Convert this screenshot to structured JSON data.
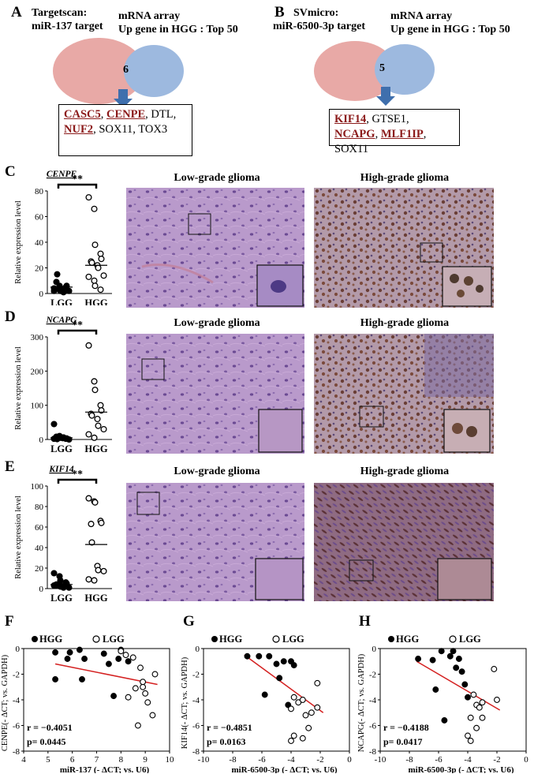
{
  "panelA": {
    "label": "A",
    "left_title_line1": "Targetscan:",
    "left_title_line2": "miR-137 target",
    "right_title_line1": "mRNA array",
    "right_title_line2": "Up gene in HGG : Top 50",
    "overlap": "6",
    "genes": [
      {
        "text": "CASC5",
        "highlight": true
      },
      {
        "text": "CENPE",
        "highlight": true
      },
      {
        "text": "DTL",
        "highlight": false
      },
      {
        "text": "NUF2",
        "highlight": true
      },
      {
        "text": "SOX11",
        "highlight": false
      },
      {
        "text": "TOX3",
        "highlight": false
      }
    ]
  },
  "panelB": {
    "label": "B",
    "left_title_line1": "SVmicro:",
    "left_title_line2": "miR-6500-3p  target",
    "right_title_line1": "mRNA array",
    "right_title_line2": "Up gene in HGG : Top 50",
    "overlap": "5",
    "genes": [
      {
        "text": "KIF14",
        "highlight": true
      },
      {
        "text": "GTSE1",
        "highlight": false
      },
      {
        "text": "NCAPG",
        "highlight": true
      },
      {
        "text": "MLF1IP",
        "highlight": true
      },
      {
        "text": "SOX11",
        "highlight": false
      }
    ]
  },
  "micrographs": {
    "low": "Low-grade glioma",
    "high": "High-grade glioma"
  },
  "colors": {
    "venn_left": "#e8a9a6",
    "venn_right": "#9db9df",
    "venn_overlap": "#b8a5c4",
    "arrow": "#3f6fad",
    "gene_red": "#8b1a1a",
    "regression_line": "#d42020",
    "lgg_tissue": "#b893c9",
    "hgg_tissue": "#a57a8f"
  },
  "panelC": {
    "label": "C",
    "gene": "CENPE",
    "sig": "**",
    "ylabel": "Relative expression level",
    "categories": [
      "LGG",
      "HGG"
    ]
  },
  "panelD": {
    "label": "D",
    "gene": "NCAPG",
    "sig": "**",
    "ylabel": "Relative expression level",
    "categories": [
      "LGG",
      "HGG"
    ]
  },
  "panelE": {
    "label": "E",
    "gene": "KIF14",
    "sig": "**",
    "ylabel": "Relative expression level",
    "categories": [
      "LGG",
      "HGG"
    ]
  },
  "panelF": {
    "label": "F",
    "legend_hgg": "HGG",
    "legend_lgg": "LGG",
    "r_text": "r = −0.4051",
    "p_text": "p= 0.0445",
    "xlabel": "miR-137 (- ΔCT; vs. U6)",
    "ylabel": "CENPE(- ΔCT; vs. GAPDH)"
  },
  "panelG": {
    "label": "G",
    "legend_hgg": "HGG",
    "legend_lgg": "LGG",
    "r_text": "r = −0.4851",
    "p_text": "p= 0.0163",
    "xlabel": "miR-6500-3p (- ΔCT; vs. U6)",
    "ylabel": "KIF14(- ΔCT; vs. GAPDH)"
  },
  "panelH": {
    "label": "H",
    "legend_hgg": "HGG",
    "legend_lgg": "LGG",
    "r_text": "r = −0.4188",
    "p_text": "p= 0.0417",
    "xlabel": "miR-6500-3p (- ΔCT; vs. U6)",
    "ylabel": "NCAPG(- ΔCT; vs. GAPDH)"
  },
  "chart_data": [
    {
      "type": "scatter",
      "panel": "C",
      "title": "CENPE",
      "ylabel": "Relative expression level",
      "categories": [
        "LGG",
        "HGG"
      ],
      "ylim": [
        0,
        80
      ],
      "yticks": [
        0,
        20,
        40,
        60,
        80
      ],
      "series": [
        {
          "name": "LGG",
          "category": "LGG",
          "marker": "filled",
          "values": [
            2,
            3,
            4,
            5,
            6,
            9,
            15,
            3,
            1,
            2,
            4,
            6,
            2
          ],
          "median": 5
        },
        {
          "name": "HGG",
          "category": "HGG",
          "marker": "open",
          "values": [
            75,
            66,
            38,
            31,
            27,
            25,
            24,
            22,
            20,
            14,
            13,
            10,
            6,
            3
          ],
          "median": 22
        }
      ]
    },
    {
      "type": "scatter",
      "panel": "D",
      "title": "NCAPG",
      "ylabel": "Relative expression level",
      "categories": [
        "LGG",
        "HGG"
      ],
      "ylim": [
        0,
        300
      ],
      "yticks": [
        0,
        100,
        200,
        300
      ],
      "series": [
        {
          "name": "LGG",
          "category": "LGG",
          "marker": "filled",
          "values": [
            45,
            10,
            5,
            2,
            3,
            8,
            1,
            4,
            6,
            0,
            2
          ],
          "median": 5
        },
        {
          "name": "HGG",
          "category": "HGG",
          "marker": "open",
          "values": [
            275,
            170,
            145,
            100,
            85,
            75,
            70,
            60,
            40,
            30,
            15,
            5
          ],
          "median": 80
        }
      ]
    },
    {
      "type": "scatter",
      "panel": "E",
      "title": "KIF14",
      "ylabel": "Relative expression level",
      "categories": [
        "LGG",
        "HGG"
      ],
      "ylim": [
        0,
        100
      ],
      "yticks": [
        0,
        20,
        40,
        60,
        80,
        100
      ],
      "series": [
        {
          "name": "LGG",
          "category": "LGG",
          "marker": "filled",
          "values": [
            15,
            12,
            8,
            6,
            5,
            4,
            3,
            2,
            1,
            1,
            3,
            5,
            2
          ],
          "median": 4
        },
        {
          "name": "HGG",
          "category": "HGG",
          "marker": "open",
          "values": [
            88,
            85,
            84,
            66,
            64,
            63,
            45,
            22,
            18,
            17,
            9,
            8
          ],
          "median": 43
        }
      ]
    },
    {
      "type": "scatter",
      "panel": "F",
      "xlabel": "miR-137 (- ΔCT; vs. U6)",
      "ylabel": "CENPE(- ΔCT; vs. GAPDH)",
      "xlim": [
        4,
        10
      ],
      "ylim": [
        -8,
        0
      ],
      "xticks": [
        4,
        5,
        6,
        7,
        8,
        9,
        10
      ],
      "yticks": [
        0,
        -2,
        -4,
        -6,
        -8
      ],
      "series": [
        {
          "name": "HGG",
          "x": [
            5.3,
            5.3,
            5.8,
            6.3,
            6.4,
            6.5,
            7.3,
            7.5,
            7.7,
            7.9,
            8.3,
            8.0,
            5.9
          ],
          "y": [
            -0.3,
            -2.4,
            -0.8,
            -0.1,
            -2.4,
            -0.8,
            -0.4,
            -1.2,
            -3.7,
            -0.8,
            -1.0,
            -0.1,
            -0.3
          ]
        },
        {
          "name": "LGG",
          "x": [
            8.0,
            8.2,
            8.5,
            8.8,
            8.9,
            9.0,
            9.1,
            9.3,
            8.7,
            8.6,
            8.9,
            9.4,
            8.3
          ],
          "y": [
            -0.2,
            -0.5,
            -0.7,
            -1.5,
            -3.0,
            -3.5,
            -4.2,
            -5.2,
            -6.0,
            -3.1,
            -2.6,
            -2.0,
            -3.8
          ]
        }
      ],
      "regression": {
        "x": [
          5.3,
          9.5
        ],
        "y": [
          -1.2,
          -2.8
        ]
      },
      "annotations": [
        "r = −0.4051",
        "p= 0.0445"
      ]
    },
    {
      "type": "scatter",
      "panel": "G",
      "xlabel": "miR-6500-3p (- ΔCT; vs. U6)",
      "ylabel": "KIF14(- ΔCT; vs. GAPDH)",
      "xlim": [
        -10,
        0
      ],
      "ylim": [
        -8,
        0
      ],
      "xticks": [
        -10,
        -8,
        -6,
        -4,
        -2,
        0
      ],
      "yticks": [
        0,
        -2,
        -4,
        -6,
        -8
      ],
      "series": [
        {
          "name": "HGG",
          "x": [
            -7.0,
            -6.2,
            -5.5,
            -5.0,
            -4.5,
            -4.0,
            -3.8,
            -4.8,
            -5.8,
            -4.2
          ],
          "y": [
            -0.6,
            -0.6,
            -0.6,
            -1.2,
            -1.0,
            -1.0,
            -1.3,
            -2.3,
            -3.6,
            -4.4
          ]
        },
        {
          "name": "LGG",
          "x": [
            -2.2,
            -3.8,
            -3.5,
            -3.2,
            -4.0,
            -3.0,
            -2.6,
            -2.2,
            -3.8,
            -4.0,
            -3.2,
            -2.8
          ],
          "y": [
            -2.7,
            -3.8,
            -4.2,
            -4.0,
            -4.7,
            -5.2,
            -5.0,
            -4.6,
            -6.8,
            -7.2,
            -7.0,
            -6.2
          ]
        }
      ],
      "regression": {
        "x": [
          -7.2,
          -1.8
        ],
        "y": [
          -0.5,
          -5.0
        ]
      },
      "annotations": [
        "r = −0.4851",
        "p= 0.0163"
      ]
    },
    {
      "type": "scatter",
      "panel": "H",
      "xlabel": "miR-6500-3p (- ΔCT; vs. U6)",
      "ylabel": "NCAPG(- ΔCT; vs. GAPDH)",
      "xlim": [
        -10,
        0
      ],
      "ylim": [
        -8,
        0
      ],
      "xticks": [
        -10,
        -8,
        -6,
        -4,
        -2,
        0
      ],
      "yticks": [
        0,
        -2,
        -4,
        -6,
        -8
      ],
      "series": [
        {
          "name": "HGG",
          "x": [
            -7.4,
            -6.4,
            -5.8,
            -5.0,
            -4.6,
            -4.4,
            -4.2,
            -4.0,
            -4.8,
            -5.2,
            -6.2,
            -5.6
          ],
          "y": [
            -0.8,
            -0.9,
            -0.2,
            -0.2,
            -0.8,
            -1.8,
            -2.8,
            -3.8,
            -1.5,
            -0.6,
            -3.2,
            -5.6
          ]
        },
        {
          "name": "LGG",
          "x": [
            -2.2,
            -2.0,
            -3.0,
            -3.4,
            -3.6,
            -3.8,
            -3.0,
            -3.4,
            -4.0,
            -3.8,
            -3.2
          ],
          "y": [
            -1.6,
            -4.0,
            -4.2,
            -4.4,
            -3.6,
            -5.4,
            -5.4,
            -6.2,
            -6.8,
            -7.2,
            -4.6
          ]
        }
      ],
      "regression": {
        "x": [
          -7.5,
          -1.8
        ],
        "y": [
          -1.0,
          -4.8
        ]
      },
      "annotations": [
        "r = −0.4188",
        "p= 0.0417"
      ]
    }
  ]
}
